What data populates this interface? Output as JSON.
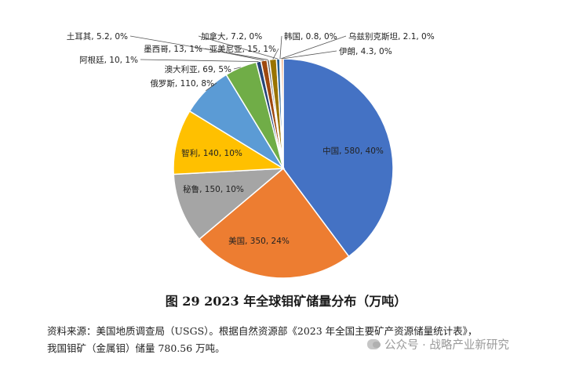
{
  "chart_data": {
    "type": "pie",
    "title": "图 29   2023 年全球钼矿储量分布（万吨）",
    "slices": [
      {
        "label": "中国",
        "value": 580,
        "pct": "40%",
        "color": "#4472C4",
        "text": "中国, 580, 40%"
      },
      {
        "label": "美国",
        "value": 350,
        "pct": "24%",
        "color": "#ED7D31",
        "text": "美国, 350, 24%"
      },
      {
        "label": "秘鲁",
        "value": 150,
        "pct": "10%",
        "color": "#A5A5A5",
        "text": "秘鲁, 150, 10%"
      },
      {
        "label": "智利",
        "value": 140,
        "pct": "10%",
        "color": "#FFC000",
        "text": "智利, 140, 10%"
      },
      {
        "label": "俄罗斯",
        "value": 110,
        "pct": "8%",
        "color": "#5B9BD5",
        "text": "俄罗斯, 110, 8%"
      },
      {
        "label": "澳大利亚",
        "value": 69,
        "pct": "5%",
        "color": "#70AD47",
        "text": "澳大利亚, 69, 5%"
      },
      {
        "label": "阿根廷",
        "value": 10,
        "pct": "1%",
        "color": "#264478",
        "text": "阿根廷, 10, 1%"
      },
      {
        "label": "墨西哥",
        "value": 13,
        "pct": "1%",
        "color": "#9E480E",
        "text": "墨西哥, 13, 1%"
      },
      {
        "label": "土耳其",
        "value": 5.2,
        "pct": "0%",
        "color": "#636363",
        "text": "土耳其, 5.2, 0%"
      },
      {
        "label": "亚美尼亚",
        "value": 15,
        "pct": "1%",
        "color": "#997300",
        "text": "亚美尼亚, 15, 1%"
      },
      {
        "label": "加拿大",
        "value": 7.2,
        "pct": "0%",
        "color": "#255E91",
        "text": "加拿大, 7.2, 0%"
      },
      {
        "label": "韩国",
        "value": 0.8,
        "pct": "0%",
        "color": "#43682B",
        "text": "韩国, 0.8, 0%"
      },
      {
        "label": "乌兹别克斯坦",
        "value": 2.1,
        "pct": "0%",
        "color": "#698ED0",
        "text": "乌兹别克斯坦, 2.1, 0%"
      },
      {
        "label": "伊朗",
        "value": 4.3,
        "pct": "0%",
        "color": "#F1975A",
        "text": "伊朗, 4.3, 0%"
      }
    ]
  },
  "source": {
    "line1": "资料来源：美国地质调查局（USGS）。根据自然资源部《2023 年全国主要矿产资源储量统计表》，",
    "line2": "我国钼矿（金属钼）储量 780.56 万吨。"
  },
  "watermark": {
    "text": "公众号 · 战略产业新研究"
  }
}
